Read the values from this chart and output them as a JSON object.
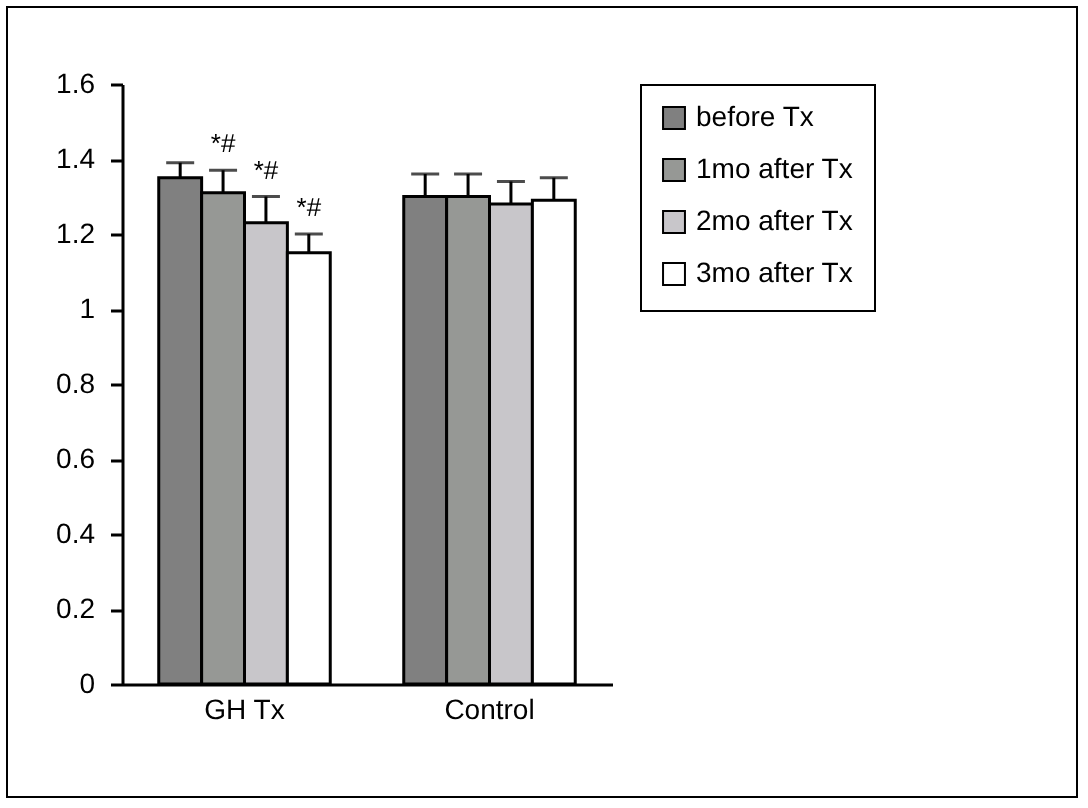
{
  "chart_data": {
    "type": "bar",
    "categories": [
      "GH Tx",
      "Control"
    ],
    "series": [
      {
        "name": "before Tx",
        "color": "#808080",
        "values": [
          1.35,
          1.3
        ],
        "errors": [
          0.04,
          0.06
        ]
      },
      {
        "name": "1mo after Tx",
        "color": "#969895",
        "values": [
          1.31,
          1.3
        ],
        "errors": [
          0.06,
          0.06
        ]
      },
      {
        "name": "2mo after Tx",
        "color": "#c8c6ca",
        "values": [
          1.23,
          1.28
        ],
        "errors": [
          0.07,
          0.06
        ]
      },
      {
        "name": "3mo after Tx",
        "color": "#ffffff",
        "values": [
          1.15,
          1.29
        ],
        "errors": [
          0.05,
          0.06
        ]
      }
    ],
    "ylim": [
      0,
      1.6
    ],
    "yticks": [
      0,
      0.2,
      0.4,
      0.6,
      0.8,
      1,
      1.2,
      1.4,
      1.6
    ],
    "grid": false,
    "legend": "right",
    "annotations": [
      {
        "text": "*#",
        "x": "GH Tx",
        "y": 1.37
      },
      {
        "text": "*#",
        "x": "GH Tx",
        "y": 1.3
      },
      {
        "text": "*#",
        "x": "GH Tx",
        "y": 1.2
      }
    ]
  }
}
